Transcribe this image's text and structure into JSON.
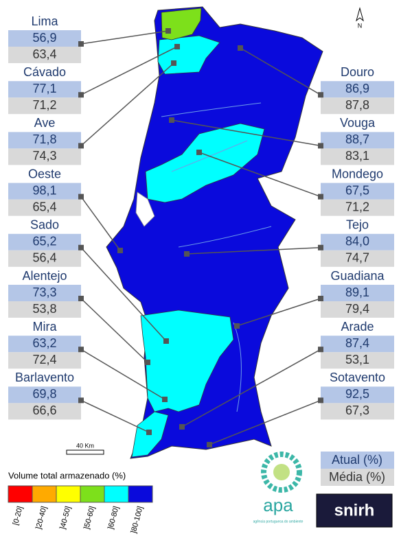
{
  "north": "N",
  "scale": "40 Km",
  "left_column": [
    {
      "name": "Lima",
      "current": "56,9",
      "average": "63,4"
    },
    {
      "name": "Cávado",
      "current": "77,1",
      "average": "71,2"
    },
    {
      "name": "Ave",
      "current": "71,8",
      "average": "74,3"
    },
    {
      "name": "Oeste",
      "current": "98,1",
      "average": "65,4"
    },
    {
      "name": "Sado",
      "current": "65,2",
      "average": "56,4"
    },
    {
      "name": "Alentejo",
      "current": "73,3",
      "average": "53,8"
    },
    {
      "name": "Mira",
      "current": "63,2",
      "average": "72,4"
    },
    {
      "name": "Barlavento",
      "current": "69,8",
      "average": "66,6"
    }
  ],
  "right_column": [
    {
      "name": "Douro",
      "current": "86,9",
      "average": "87,8"
    },
    {
      "name": "Vouga",
      "current": "88,7",
      "average": "83,1"
    },
    {
      "name": "Mondego",
      "current": "67,5",
      "average": "71,2"
    },
    {
      "name": "Tejo",
      "current": "84,0",
      "average": "74,7"
    },
    {
      "name": "Guadiana",
      "current": "89,1",
      "average": "79,4"
    },
    {
      "name": "Arade",
      "current": "87,4",
      "average": "53,1"
    },
    {
      "name": "Sotavento",
      "current": "92,5",
      "average": "67,3"
    }
  ],
  "legend": {
    "title": "Volume total armazenado (%)",
    "classes": [
      {
        "label": "[0-20]",
        "color": "#ff0000"
      },
      {
        "label": "]20-40]",
        "color": "#ffaa00"
      },
      {
        "label": "]40-50]",
        "color": "#ffff00"
      },
      {
        "label": "]50-60]",
        "color": "#7de01b"
      },
      {
        "label": "]60-80]",
        "color": "#00ffff"
      },
      {
        "label": "]80-100]",
        "color": "#0a0adc"
      }
    ]
  },
  "key": {
    "current": "Atual (%)",
    "average": "Média (%)"
  },
  "logos": {
    "apa": "apa",
    "apa_subtitle": "agência portuguesa do ambiente",
    "snirh": "snirh"
  }
}
